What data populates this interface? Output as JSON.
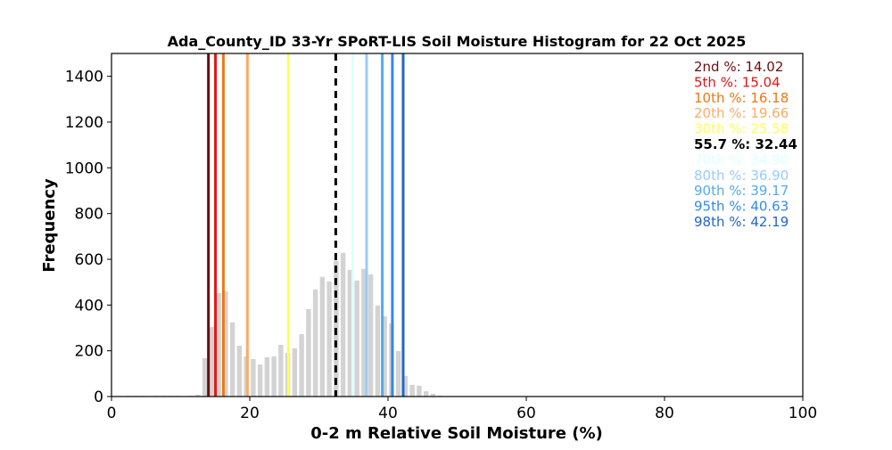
{
  "chart_data": {
    "type": "bar",
    "title": "Ada_County_ID 33-Yr SPoRT-LIS Soil Moisture Histogram for 22 Oct 2025",
    "xlabel": "0-2 m Relative Soil Moisture (%)",
    "ylabel": "Frequency",
    "xlim": [
      0,
      100
    ],
    "ylim": [
      0,
      1500
    ],
    "xticks": [
      0,
      20,
      40,
      60,
      80,
      100
    ],
    "yticks": [
      0,
      200,
      400,
      600,
      800,
      1000,
      1200,
      1400
    ],
    "bar_color": "#d3d3d3",
    "bin_width": 1,
    "bins": [
      [
        2.5,
        3
      ],
      [
        3.5,
        3
      ],
      [
        4.5,
        3
      ],
      [
        6.5,
        3
      ],
      [
        7.5,
        3
      ],
      [
        8.5,
        3
      ],
      [
        9.5,
        3
      ],
      [
        11.5,
        3
      ],
      [
        12.5,
        8
      ],
      [
        13.5,
        168
      ],
      [
        14.5,
        304
      ],
      [
        15.5,
        452
      ],
      [
        16.5,
        460
      ],
      [
        17.5,
        324
      ],
      [
        18.5,
        222
      ],
      [
        19.5,
        176
      ],
      [
        20.5,
        164
      ],
      [
        21.5,
        140
      ],
      [
        22.5,
        172
      ],
      [
        23.5,
        176
      ],
      [
        24.5,
        226
      ],
      [
        25.5,
        191
      ],
      [
        26.5,
        211
      ],
      [
        27.5,
        273
      ],
      [
        28.5,
        382
      ],
      [
        29.5,
        468
      ],
      [
        30.5,
        523
      ],
      [
        31.5,
        503
      ],
      [
        32.5,
        593
      ],
      [
        33.5,
        628
      ],
      [
        34.5,
        554
      ],
      [
        35.5,
        507
      ],
      [
        36.5,
        558
      ],
      [
        37.5,
        534
      ],
      [
        38.5,
        398
      ],
      [
        39.5,
        351
      ],
      [
        40.5,
        320
      ],
      [
        41.5,
        199
      ],
      [
        42.5,
        90
      ],
      [
        43.5,
        51
      ],
      [
        44.5,
        47
      ],
      [
        45.5,
        23
      ],
      [
        46.5,
        12
      ],
      [
        47.5,
        4
      ]
    ],
    "percentiles": [
      {
        "label": "2nd %: 14.02",
        "value": 14.02,
        "color": "#6b0d0d"
      },
      {
        "label": "5th %: 15.04",
        "value": 15.04,
        "color": "#e81414"
      },
      {
        "label": "10th %: 16.18",
        "value": 16.18,
        "color": "#ee7711"
      },
      {
        "label": "20th %: 19.66",
        "value": 19.66,
        "color": "#ffaa66"
      },
      {
        "label": "30th %: 25.58",
        "value": 25.58,
        "color": "#ffff55"
      },
      {
        "label": "55.7 %: 32.44",
        "value": 32.44,
        "color": "#000000",
        "current": true
      },
      {
        "label": "70th %: 34.90",
        "value": 34.9,
        "color": "#ddffff"
      },
      {
        "label": "80th %: 36.90",
        "value": 36.9,
        "color": "#99ccff"
      },
      {
        "label": "90th %: 39.17",
        "value": 39.17,
        "color": "#55aaee"
      },
      {
        "label": "95th %: 40.63",
        "value": 40.63,
        "color": "#3388ee"
      },
      {
        "label": "98th %: 42.19",
        "value": 42.19,
        "color": "#2266cc"
      }
    ]
  }
}
